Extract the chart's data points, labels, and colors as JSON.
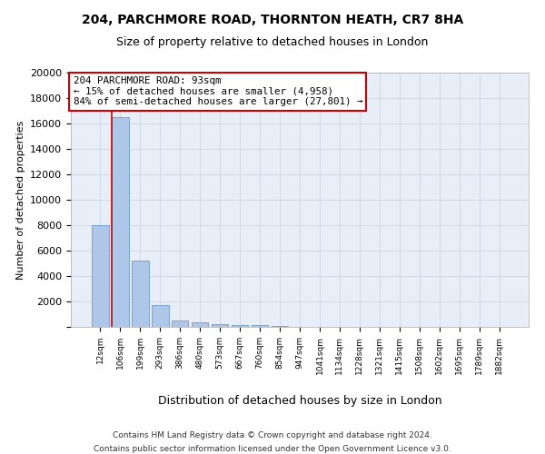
{
  "title1": "204, PARCHMORE ROAD, THORNTON HEATH, CR7 8HA",
  "title2": "Size of property relative to detached houses in London",
  "xlabel": "Distribution of detached houses by size in London",
  "ylabel": "Number of detached properties",
  "categories": [
    "12sqm",
    "106sqm",
    "199sqm",
    "293sqm",
    "386sqm",
    "480sqm",
    "573sqm",
    "667sqm",
    "760sqm",
    "854sqm",
    "947sqm",
    "1041sqm",
    "1134sqm",
    "1228sqm",
    "1321sqm",
    "1415sqm",
    "1508sqm",
    "1602sqm",
    "1695sqm",
    "1789sqm",
    "1882sqm"
  ],
  "values": [
    8000,
    16500,
    5200,
    1750,
    500,
    370,
    210,
    170,
    130,
    80,
    0,
    0,
    0,
    0,
    0,
    0,
    0,
    0,
    0,
    0,
    0
  ],
  "bar_color": "#aec6e8",
  "bar_edge_color": "#5a8fc2",
  "grid_color": "#c8d0e0",
  "bg_color": "#e8eef8",
  "annotation_text": "204 PARCHMORE ROAD: 93sqm\n← 15% of detached houses are smaller (4,958)\n84% of semi-detached houses are larger (27,801) →",
  "annotation_box_color": "#cc0000",
  "vline_color": "#cc0000",
  "ylim": [
    0,
    20000
  ],
  "yticks": [
    0,
    2000,
    4000,
    6000,
    8000,
    10000,
    12000,
    14000,
    16000,
    18000,
    20000
  ],
  "footer1": "Contains HM Land Registry data © Crown copyright and database right 2024.",
  "footer2": "Contains public sector information licensed under the Open Government Licence v3.0."
}
